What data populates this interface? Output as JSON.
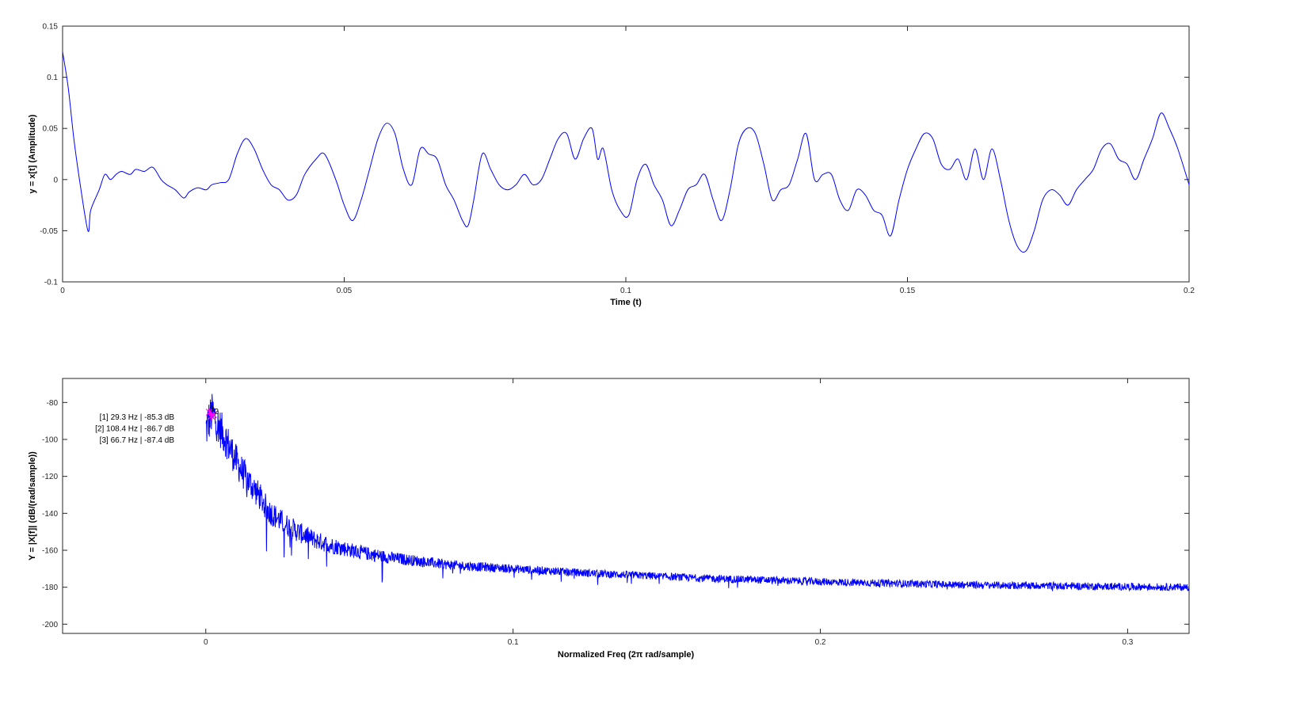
{
  "colors": {
    "series": "#0000ff",
    "marker": "#ff00ff",
    "axis": "#262626"
  },
  "chart_data": [
    {
      "type": "line",
      "title": "",
      "xlabel": "Time (t)",
      "ylabel": "y = x[t] (Amplitude)",
      "xlim": [
        0,
        0.2
      ],
      "ylim": [
        -0.1,
        0.15
      ],
      "xticks": [
        0,
        0.05,
        0.1,
        0.15,
        0.2
      ],
      "xtick_labels": [
        "0",
        "0.05",
        "0.1",
        "0.15",
        "0.2"
      ],
      "yticks": [
        -0.1,
        -0.05,
        0,
        0.05,
        0.1,
        0.15
      ],
      "ytick_labels": [
        "-0.1",
        "-0.05",
        "0",
        "0.05",
        "0.1",
        "0.15"
      ],
      "grid": false,
      "series": [
        {
          "color": "#0000ff",
          "x": [
            0,
            0.001,
            0.002,
            0.003,
            0.0045,
            0.005,
            0.0065,
            0.0075,
            0.0085,
            0.0095,
            0.0105,
            0.012,
            0.013,
            0.0145,
            0.016,
            0.0175,
            0.0185,
            0.02,
            0.0215,
            0.0225,
            0.024,
            0.0255,
            0.0265,
            0.028,
            0.0295,
            0.031,
            0.0325,
            0.034,
            0.0355,
            0.037,
            0.0385,
            0.04,
            0.0415,
            0.043,
            0.045,
            0.0465,
            0.0485,
            0.05,
            0.0515,
            0.053,
            0.0545,
            0.056,
            0.0575,
            0.059,
            0.0605,
            0.062,
            0.0635,
            0.065,
            0.0665,
            0.068,
            0.0695,
            0.071,
            0.072,
            0.073,
            0.0745,
            0.076,
            0.0775,
            0.079,
            0.0805,
            0.082,
            0.0835,
            0.085,
            0.0865,
            0.088,
            0.0895,
            0.091,
            0.0925,
            0.094,
            0.095,
            0.096,
            0.0975,
            0.099,
            0.1005,
            0.102,
            0.1035,
            0.105,
            0.1065,
            0.108,
            0.1095,
            0.111,
            0.1125,
            0.114,
            0.1155,
            0.117,
            0.1185,
            0.12,
            0.1215,
            0.123,
            0.1245,
            0.126,
            0.1275,
            0.129,
            0.1305,
            0.132,
            0.1335,
            0.135,
            0.1365,
            0.138,
            0.1395,
            0.141,
            0.1425,
            0.144,
            0.1455,
            0.147,
            0.1485,
            0.15,
            0.1515,
            0.153,
            0.1545,
            0.156,
            0.1575,
            0.159,
            0.1605,
            0.162,
            0.1635,
            0.165,
            0.1665,
            0.168,
            0.1695,
            0.171,
            0.1725,
            0.174,
            0.1755,
            0.177,
            0.1785,
            0.18,
            0.1815,
            0.183,
            0.1845,
            0.186,
            0.1875,
            0.189,
            0.1905,
            0.192,
            0.1935,
            0.195,
            0.1965,
            0.198,
            0.2
          ],
          "y": [
            0.125,
            0.09,
            0.04,
            0.0,
            -0.05,
            -0.03,
            -0.01,
            0.005,
            0.0,
            0.005,
            0.008,
            0.005,
            0.01,
            0.008,
            0.012,
            0.0,
            -0.005,
            -0.01,
            -0.018,
            -0.012,
            -0.008,
            -0.01,
            -0.005,
            -0.003,
            0.0,
            0.025,
            0.04,
            0.03,
            0.01,
            -0.005,
            -0.01,
            -0.02,
            -0.015,
            0.005,
            0.02,
            0.025,
            0.0,
            -0.025,
            -0.04,
            -0.02,
            0.01,
            0.04,
            0.055,
            0.045,
            0.01,
            -0.005,
            0.03,
            0.025,
            0.02,
            -0.005,
            -0.02,
            -0.04,
            -0.045,
            -0.02,
            0.025,
            0.01,
            -0.005,
            -0.01,
            -0.005,
            0.005,
            -0.005,
            0.0,
            0.02,
            0.04,
            0.045,
            0.02,
            0.04,
            0.05,
            0.02,
            0.03,
            -0.01,
            -0.03,
            -0.035,
            0.0,
            0.015,
            -0.005,
            -0.02,
            -0.045,
            -0.03,
            -0.01,
            -0.005,
            0.005,
            -0.02,
            -0.04,
            -0.01,
            0.035,
            0.05,
            0.045,
            0.015,
            -0.02,
            -0.01,
            -0.005,
            0.02,
            0.045,
            0.0,
            0.005,
            0.005,
            -0.02,
            -0.03,
            -0.01,
            -0.015,
            -0.03,
            -0.035,
            -0.055,
            -0.02,
            0.01,
            0.03,
            0.045,
            0.04,
            0.015,
            0.01,
            0.02,
            0.0,
            0.03,
            0.0,
            0.03,
            0.0,
            -0.04,
            -0.065,
            -0.07,
            -0.05,
            -0.02,
            -0.01,
            -0.015,
            -0.025,
            -0.01,
            0.0,
            0.01,
            0.03,
            0.035,
            0.02,
            0.015,
            0.0,
            0.02,
            0.04,
            0.065,
            0.05,
            0.03,
            -0.005
          ]
        }
      ]
    },
    {
      "type": "line",
      "title": "",
      "xlabel": "Normalized Freq (2π rad/sample)",
      "ylabel": "Y = |X[f]| (dB/(rad/sample))",
      "xlim": [
        -0.0466,
        0.32
      ],
      "ylim": [
        -205,
        -67
      ],
      "xticks": [
        0,
        0.1,
        0.2,
        0.3
      ],
      "xtick_labels": [
        "0",
        "0.1",
        "0.2",
        "0.3"
      ],
      "yticks": [
        -200,
        -180,
        -160,
        -140,
        -120,
        -100,
        -80
      ],
      "ytick_labels": [
        "-200",
        "-180",
        "-160",
        "-140",
        "-120",
        "-100",
        "-80"
      ],
      "grid": false,
      "series": [
        {
          "color": "#0000ff",
          "x": [
            0,
            0.001,
            0.002,
            0.003,
            0.004,
            0.006,
            0.008,
            0.01,
            0.012,
            0.015,
            0.018,
            0.02,
            0.025,
            0.03,
            0.035,
            0.04,
            0.05,
            0.06,
            0.07,
            0.08,
            0.09,
            0.1,
            0.12,
            0.14,
            0.16,
            0.18,
            0.2,
            0.22,
            0.24,
            0.26,
            0.28,
            0.3,
            0.32
          ],
          "y": [
            -95,
            -90,
            -86,
            -88,
            -92,
            -98,
            -105,
            -112,
            -118,
            -125,
            -132,
            -138,
            -145,
            -150,
            -154,
            -157,
            -161,
            -164,
            -166,
            -168,
            -169,
            -170,
            -172,
            -173.5,
            -175,
            -176,
            -177,
            -177.8,
            -178.5,
            -179,
            -179.3,
            -179.7,
            -180
          ]
        }
      ],
      "peaks": [
        {
          "label": "1",
          "x": 0.0012,
          "y": -85.3
        },
        {
          "label": "2",
          "x": 0.0025,
          "y": -86.7
        },
        {
          "label": "3",
          "x": 0.0018,
          "y": -87.4
        }
      ],
      "annotations": [
        "[1] 29.3 Hz | -85.3 dB",
        "[2] 108.4 Hz | -86.7 dB",
        "[3] 66.7 Hz | -87.4 dB"
      ]
    }
  ]
}
